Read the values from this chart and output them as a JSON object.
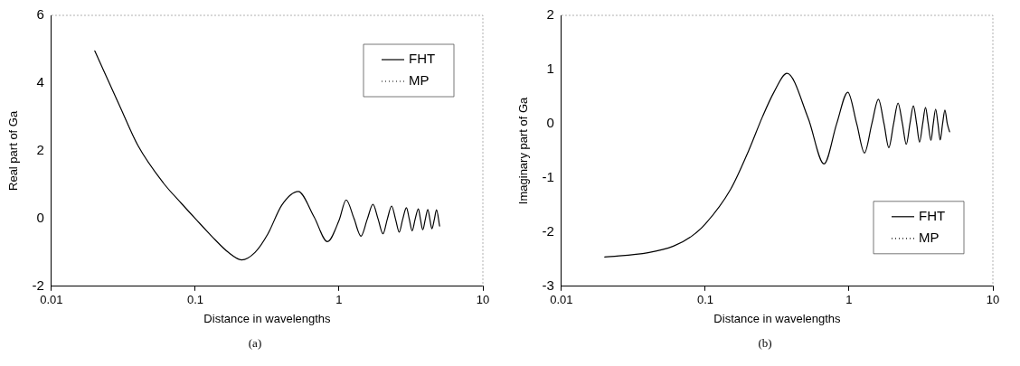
{
  "chart_data": [
    {
      "type": "line",
      "xlabel": "Distance in wavelengths",
      "ylabel": "Real part of Ga",
      "log": "x",
      "xlim": [
        0.01,
        10
      ],
      "xticks": [
        0.01,
        0.1,
        1,
        10
      ],
      "ylim": [
        -2,
        6
      ],
      "yticks": [
        -2,
        0,
        2,
        4,
        6
      ],
      "legend": "top right",
      "grid": false,
      "annotations": [
        "(a)"
      ],
      "x": [
        0.02,
        0.03,
        0.04,
        0.06,
        0.08,
        0.1,
        0.13,
        0.17,
        0.21,
        0.26,
        0.32,
        0.4,
        0.52,
        0.67,
        0.83,
        1.0,
        1.12,
        1.27,
        1.42,
        1.57,
        1.72,
        1.87,
        2.02,
        2.17,
        2.32,
        2.47,
        2.62,
        2.77,
        2.94,
        3.08,
        3.22,
        3.38,
        3.56,
        3.68,
        3.82,
        3.98,
        4.14,
        4.28,
        4.42,
        4.6,
        4.76,
        5.0
      ],
      "series": [
        {
          "name": "FHT",
          "color": "#000000",
          "line_style": "solid",
          "values": [
            4.95,
            3.3,
            2.15,
            1.05,
            0.45,
            0.0,
            -0.52,
            -1.0,
            -1.22,
            -1.0,
            -0.45,
            0.4,
            0.8,
            0.05,
            -0.68,
            -0.05,
            0.55,
            0.0,
            -0.52,
            -0.02,
            0.42,
            -0.02,
            -0.45,
            0.0,
            0.37,
            -0.02,
            -0.4,
            -0.02,
            0.32,
            -0.02,
            -0.36,
            -0.02,
            0.29,
            -0.02,
            -0.33,
            -0.02,
            0.27,
            -0.02,
            -0.3,
            -0.02,
            0.26,
            -0.22
          ]
        },
        {
          "name": "MP",
          "color": "#000000",
          "line_style": "dotted",
          "values": [
            null,
            null,
            null,
            null,
            null,
            null,
            null,
            null,
            null,
            null,
            null,
            null,
            null,
            null,
            null,
            null,
            null,
            null,
            null,
            null,
            null,
            null,
            null,
            null,
            null,
            null,
            null,
            null,
            null,
            null,
            null,
            null,
            null,
            null,
            null,
            null,
            null,
            null,
            null,
            null,
            null,
            null
          ]
        }
      ]
    },
    {
      "type": "line",
      "xlabel": "Distance in wavelengths",
      "ylabel": "Imaginary part of Ga",
      "log": "x",
      "xlim": [
        0.01,
        10
      ],
      "xticks": [
        0.01,
        0.1,
        1,
        10
      ],
      "ylim": [
        -3,
        2
      ],
      "yticks": [
        -3,
        -2,
        -1,
        0,
        1,
        2
      ],
      "legend": "bottom right",
      "grid": false,
      "annotations": [
        "(b)"
      ],
      "x": [
        0.02,
        0.04,
        0.06,
        0.08,
        0.1,
        0.15,
        0.2,
        0.25,
        0.3,
        0.37,
        0.52,
        0.67,
        0.82,
        0.98,
        1.13,
        1.28,
        1.44,
        1.6,
        1.75,
        1.89,
        2.04,
        2.19,
        2.35,
        2.5,
        2.65,
        2.8,
        2.95,
        3.09,
        3.25,
        3.4,
        3.55,
        3.71,
        3.85,
        4.0,
        4.15,
        4.3,
        4.47,
        4.64,
        4.82,
        5.0
      ],
      "series": [
        {
          "name": "FHT",
          "color": "#000000",
          "line_style": "solid",
          "values": [
            -2.46,
            -2.38,
            -2.26,
            -2.08,
            -1.85,
            -1.21,
            -0.5,
            0.13,
            0.58,
            0.93,
            0.1,
            -0.74,
            0.0,
            0.58,
            0.0,
            -0.54,
            0.0,
            0.45,
            0.0,
            -0.44,
            0.0,
            0.38,
            0.0,
            -0.38,
            0.0,
            0.33,
            0.0,
            -0.34,
            0.0,
            0.3,
            0.0,
            -0.31,
            0.0,
            0.27,
            0.0,
            -0.3,
            0.0,
            0.25,
            0.0,
            -0.15
          ]
        },
        {
          "name": "MP",
          "color": "#000000",
          "line_style": "dotted",
          "values": [
            null,
            null,
            null,
            null,
            null,
            null,
            null,
            null,
            null,
            null,
            null,
            null,
            null,
            null,
            null,
            null,
            null,
            null,
            null,
            null,
            null,
            null,
            null,
            null,
            null,
            null,
            null,
            null,
            null,
            null,
            null,
            null,
            null,
            null,
            null,
            null,
            null,
            null,
            null,
            null
          ]
        }
      ]
    }
  ]
}
